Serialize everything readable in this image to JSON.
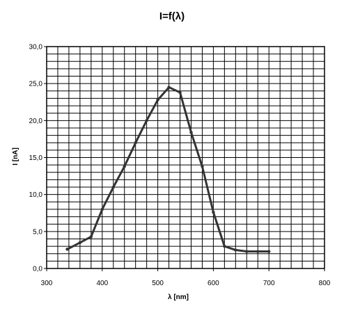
{
  "chart_data": {
    "type": "line",
    "title": "I=f(λ)",
    "xlabel": "λ [nm]",
    "ylabel": "I [nA]",
    "xlim": [
      300,
      800
    ],
    "ylim": [
      0,
      30
    ],
    "x_ticks": [
      "300",
      "400",
      "500",
      "600",
      "700",
      "800"
    ],
    "y_ticks": [
      "0,0",
      "5,0",
      "10,0",
      "15,0",
      "20,0",
      "25,0",
      "30,0"
    ],
    "grid": true,
    "legend": "none",
    "series": [
      {
        "color": "#333333",
        "x": [
          337,
          360,
          380,
          400,
          420,
          440,
          460,
          480,
          500,
          520,
          540,
          560,
          580,
          600,
          620,
          640,
          660,
          680,
          700
        ],
        "y": [
          2.6,
          3.5,
          4.3,
          8.0,
          11.0,
          13.8,
          17.0,
          20.0,
          22.8,
          24.5,
          23.8,
          18.4,
          13.8,
          7.6,
          3.0,
          2.5,
          2.3,
          2.3,
          2.3
        ]
      }
    ]
  }
}
